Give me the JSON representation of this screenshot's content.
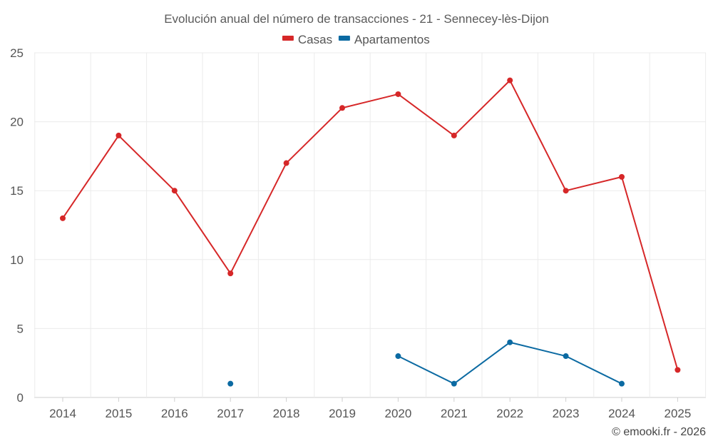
{
  "chart_data": {
    "type": "line",
    "title": "Evolución anual del número de transacciones - 21 - Sennecey-lès-Dijon",
    "categories": [
      "2014",
      "2015",
      "2016",
      "2017",
      "2018",
      "2019",
      "2020",
      "2021",
      "2022",
      "2023",
      "2024",
      "2025"
    ],
    "ylim": [
      0,
      25
    ],
    "yticks": [
      0,
      5,
      10,
      15,
      20,
      25
    ],
    "grid": true,
    "legend_position": "top-center",
    "series": [
      {
        "name": "Casas",
        "color": "#d62728",
        "values": [
          13,
          19,
          15,
          9,
          17,
          21,
          22,
          19,
          23,
          15,
          16,
          2
        ]
      },
      {
        "name": "Apartamentos",
        "color": "#0b6aa2",
        "values": [
          null,
          null,
          null,
          1,
          null,
          null,
          3,
          1,
          4,
          3,
          1,
          null
        ]
      }
    ],
    "xlabel": "",
    "ylabel": ""
  },
  "credit": "© emooki.fr - 2026"
}
